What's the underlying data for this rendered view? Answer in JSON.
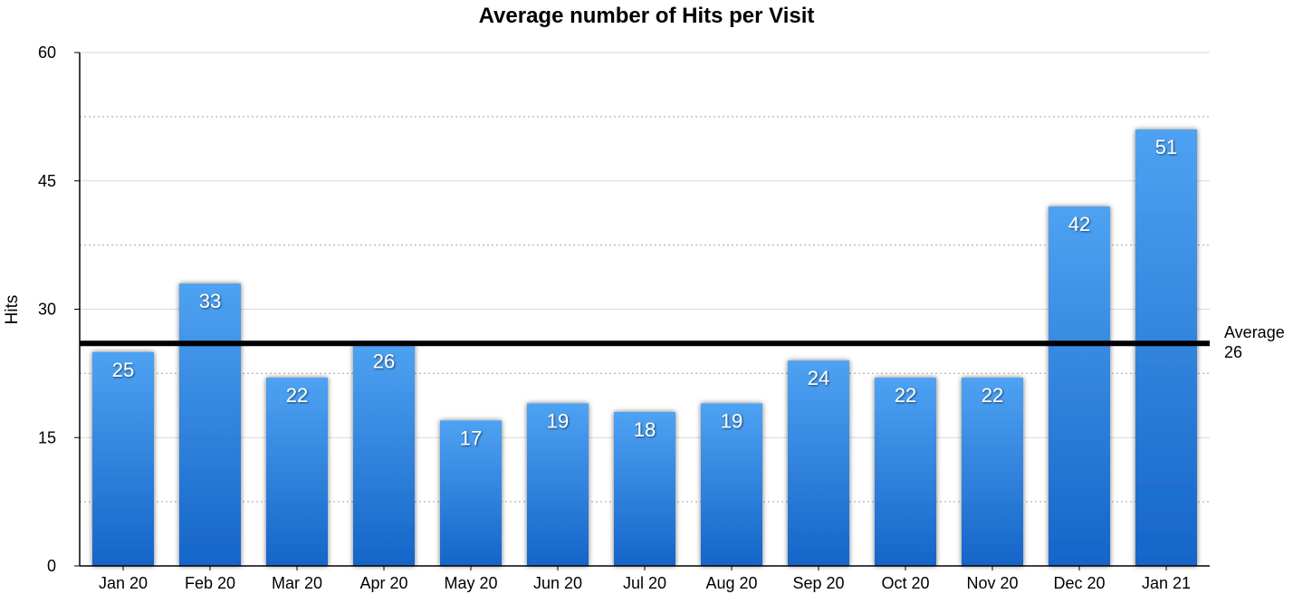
{
  "chart_data": {
    "type": "bar",
    "title": "Average number of Hits per Visit",
    "xlabel": "",
    "ylabel": "Hits",
    "ylim": [
      0,
      60
    ],
    "yticks": [
      0,
      15,
      30,
      45,
      60
    ],
    "grid": true,
    "categories": [
      "Jan 20",
      "Feb 20",
      "Mar 20",
      "Apr 20",
      "May 20",
      "Jun 20",
      "Jul 20",
      "Aug 20",
      "Sep 20",
      "Oct 20",
      "Nov 20",
      "Dec 20",
      "Jan 21"
    ],
    "values": [
      25,
      33,
      22,
      26,
      17,
      19,
      18,
      19,
      24,
      22,
      22,
      42,
      51
    ],
    "average": {
      "label": "Average",
      "value": 26
    },
    "bar_color_top": "#4ea2f2",
    "bar_color_bottom": "#1565c8",
    "average_line_color": "#000000"
  }
}
